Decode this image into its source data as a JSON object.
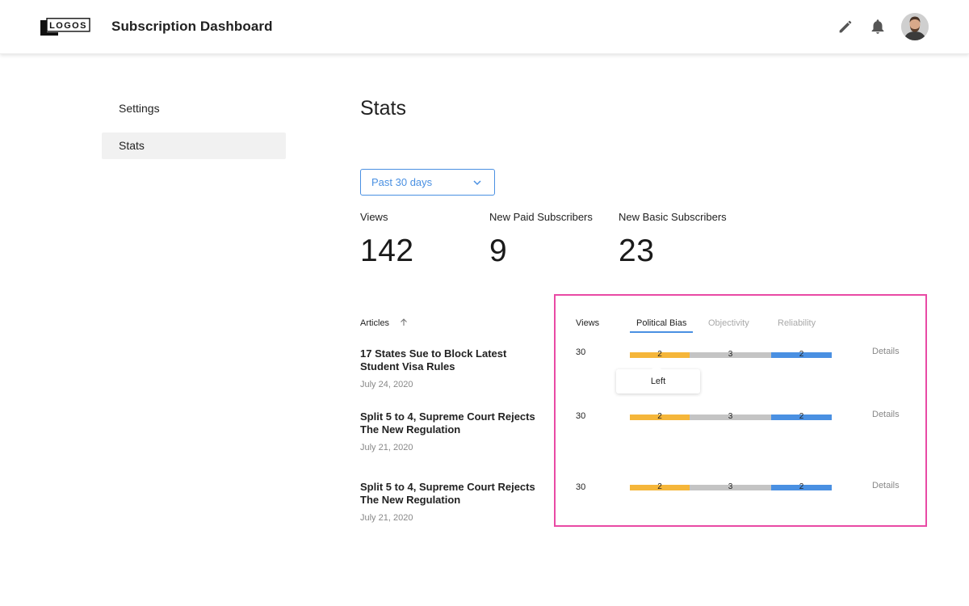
{
  "header": {
    "logo_text": "LOGOS",
    "title": "Subscription Dashboard",
    "icons": [
      "pencil-icon",
      "bell-icon"
    ],
    "avatar": "user-avatar"
  },
  "sidebar": {
    "items": [
      {
        "label": "Settings",
        "active": false
      },
      {
        "label": "Stats",
        "active": true
      }
    ]
  },
  "main": {
    "title": "Stats",
    "date_filter": {
      "selected": "Past 30 days"
    },
    "stats": [
      {
        "label": "Views",
        "value": "142"
      },
      {
        "label": "New Paid Subscribers",
        "value": "9"
      },
      {
        "label": "New Basic Subscribers",
        "value": "23"
      }
    ],
    "table": {
      "articles_header": "Articles",
      "views_header": "Views",
      "tabs": [
        {
          "label": "Political Bias",
          "active": true
        },
        {
          "label": "Objectivity",
          "active": false
        },
        {
          "label": "Reliability",
          "active": false
        }
      ],
      "details_label": "Details",
      "tooltip": "Left",
      "rows": [
        {
          "title": "17 States Sue to Block Latest Student Visa Rules",
          "date": "July 24, 2020",
          "views": "30",
          "bias": {
            "left": "2",
            "center": "3",
            "right": "2"
          }
        },
        {
          "title": "Split 5 to 4, Supreme Court Rejects The New Regulation",
          "date": "July 21, 2020",
          "views": "30",
          "bias": {
            "left": "2",
            "center": "3",
            "right": "2"
          }
        },
        {
          "title": "Split 5 to 4, Supreme Court Rejects The New Regulation",
          "date": "July 21, 2020",
          "views": "30",
          "bias": {
            "left": "2",
            "center": "3",
            "right": "2"
          }
        }
      ]
    }
  },
  "colors": {
    "accent": "#4a90e2",
    "bias_left": "#f5b63a",
    "bias_center": "#c4c4c4",
    "bias_right": "#4a90e2",
    "highlight": "#e94aa5"
  }
}
